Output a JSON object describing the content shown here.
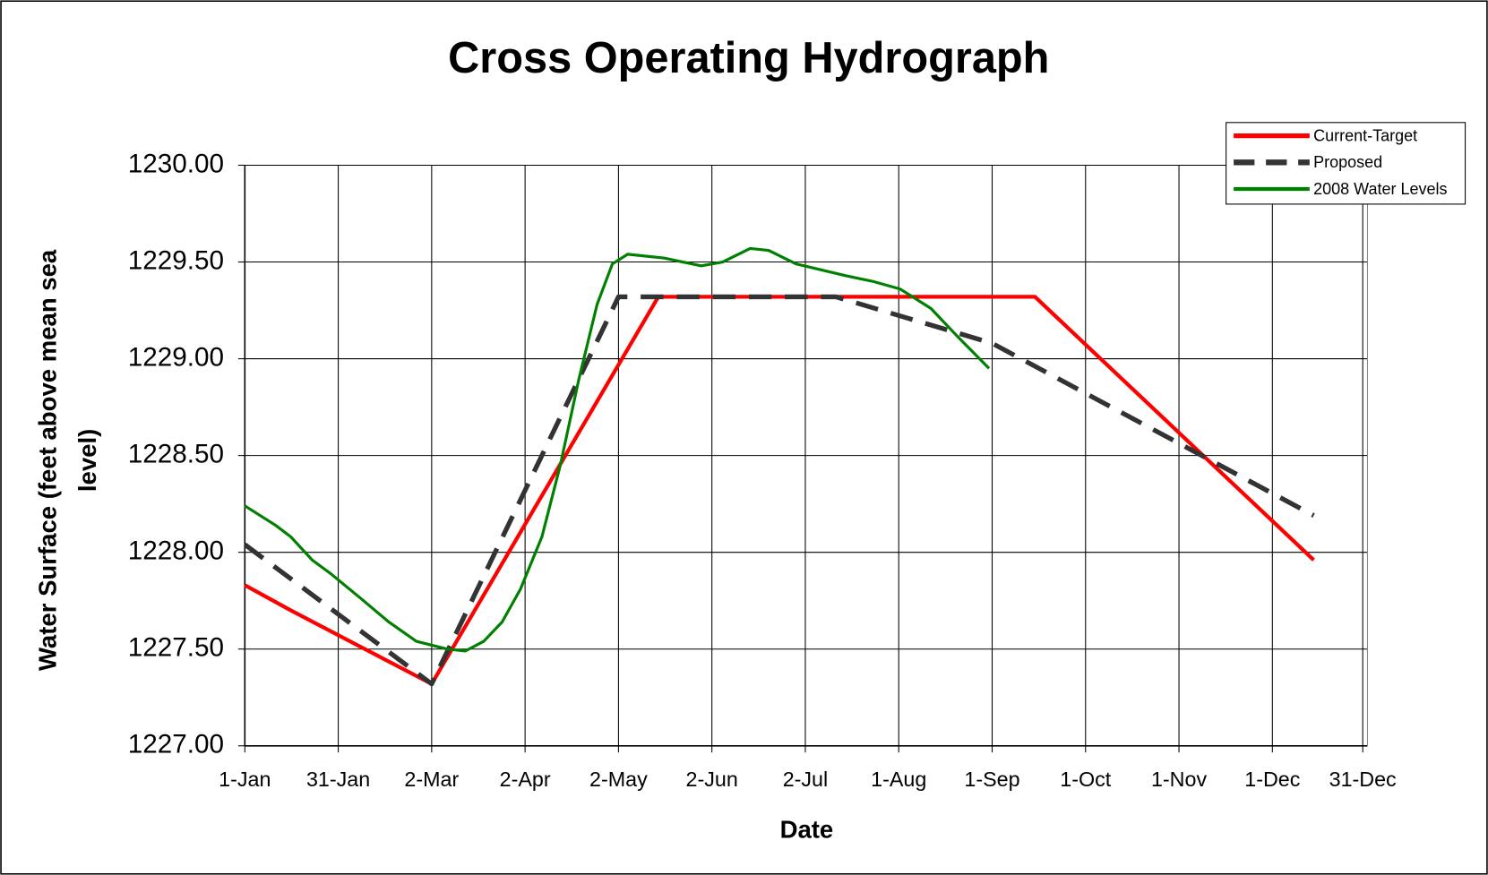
{
  "chart_data": {
    "type": "line",
    "title": "Cross Operating Hydrograph",
    "xlabel": "Date",
    "ylabel": [
      "Water Surface (feet above mean sea",
      "level)"
    ],
    "xlim": [
      0,
      365
    ],
    "xticks": [
      {
        "value": 0,
        "label": "1-Jan"
      },
      {
        "value": 30.5,
        "label": "31-Jan"
      },
      {
        "value": 61,
        "label": "2-Mar"
      },
      {
        "value": 91.5,
        "label": "2-Apr"
      },
      {
        "value": 122,
        "label": "2-May"
      },
      {
        "value": 152.5,
        "label": "2-Jun"
      },
      {
        "value": 183,
        "label": "2-Jul"
      },
      {
        "value": 213.5,
        "label": "1-Aug"
      },
      {
        "value": 244,
        "label": "1-Sep"
      },
      {
        "value": 274.5,
        "label": "1-Oct"
      },
      {
        "value": 305,
        "label": "1-Nov"
      },
      {
        "value": 335.5,
        "label": "1-Dec"
      },
      {
        "value": 365,
        "label": "31-Dec"
      }
    ],
    "ylim": [
      1227,
      1230
    ],
    "yticks": [
      {
        "value": 1227,
        "label": "1227.00"
      },
      {
        "value": 1227.5,
        "label": "1227.50"
      },
      {
        "value": 1228,
        "label": "1228.00"
      },
      {
        "value": 1228.5,
        "label": "1228.50"
      },
      {
        "value": 1229,
        "label": "1229.00"
      },
      {
        "value": 1229.5,
        "label": "1229.50"
      },
      {
        "value": 1230,
        "label": "1230.00"
      }
    ],
    "grid": true,
    "legend": "top-right",
    "series": [
      {
        "name": "Current-Target",
        "color": "#ff0000",
        "style": "solid",
        "x": [
          0,
          15,
          61,
          135,
          258,
          349
        ],
        "values": [
          1227.83,
          1227.7,
          1227.32,
          1229.32,
          1229.32,
          1227.96
        ]
      },
      {
        "name": "Proposed",
        "color": "#333333",
        "style": "dashed",
        "x": [
          0,
          61,
          122,
          193,
          244,
          349
        ],
        "values": [
          1228.04,
          1227.32,
          1229.32,
          1229.32,
          1229.08,
          1228.19
        ]
      },
      {
        "name": "2008 Water Levels",
        "color": "#008000",
        "style": "thin",
        "x": [
          0,
          10,
          15,
          22,
          28,
          38,
          47,
          56,
          66,
          72,
          78,
          84,
          90,
          97,
          103,
          109,
          115,
          120,
          125,
          137,
          149,
          156,
          165,
          171,
          180,
          196,
          205,
          214,
          224,
          233,
          243
        ],
        "values": [
          1228.24,
          1228.14,
          1228.08,
          1227.96,
          1227.89,
          1227.76,
          1227.64,
          1227.54,
          1227.5,
          1227.49,
          1227.54,
          1227.64,
          1227.81,
          1228.08,
          1228.45,
          1228.89,
          1229.28,
          1229.49,
          1229.54,
          1229.52,
          1229.48,
          1229.5,
          1229.57,
          1229.56,
          1229.49,
          1229.43,
          1229.4,
          1229.36,
          1229.26,
          1229.11,
          1228.95
        ]
      }
    ]
  }
}
